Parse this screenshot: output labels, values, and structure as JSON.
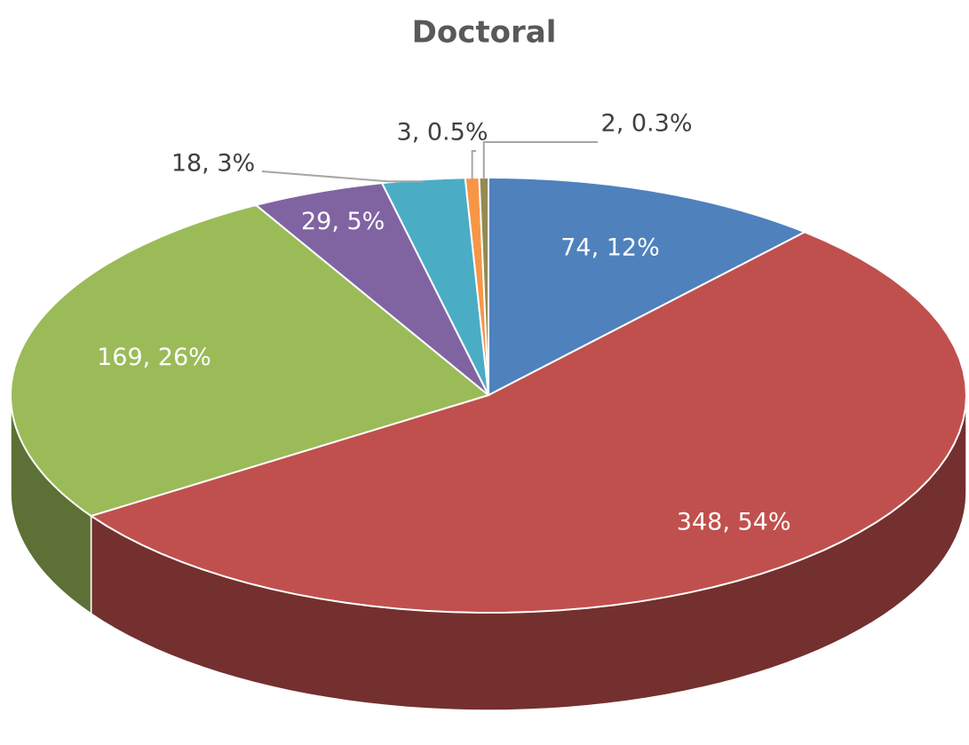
{
  "chart_data": {
    "type": "pie",
    "title": "Doctoral",
    "values": [
      74,
      348,
      169,
      29,
      18,
      3,
      2
    ],
    "value_labels": [
      "74, 12%",
      "348, 54%",
      "169, 26%",
      "29, 5%",
      "18, 3%",
      "3, 0.5%",
      "2, 0.3%"
    ],
    "colors": [
      "#4f81bd",
      "#c0504d",
      "#9bbb59",
      "#8064a2",
      "#4bacc6",
      "#f79646",
      "#948a54"
    ]
  }
}
